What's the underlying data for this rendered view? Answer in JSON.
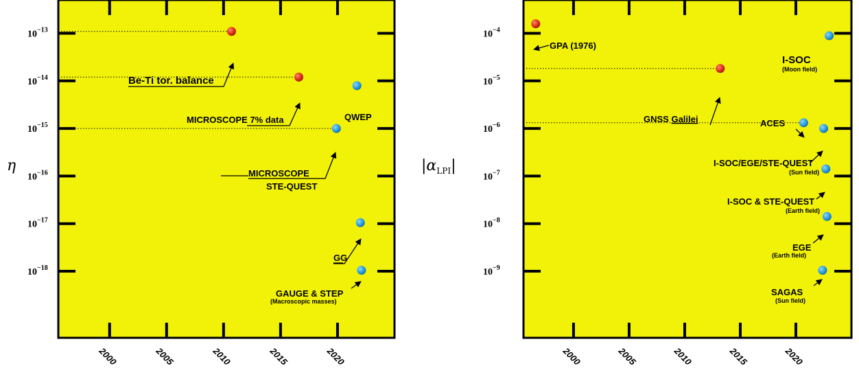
{
  "colors": {
    "background": "#f2f208",
    "frame": "#000000",
    "achieved_marker": "#e0301e",
    "projected_marker": "#2aa0e0"
  },
  "chart_data": [
    {
      "type": "scatter",
      "ylabel_main": "η",
      "xlim": [
        1995.5,
        2025
      ],
      "ylog": true,
      "ylim_exp": [
        -19.4,
        -12.3
      ],
      "xtick_labels": [
        "2000",
        "2005",
        "2010",
        "2015",
        "2020"
      ],
      "xticks": [
        2000,
        2005,
        2010,
        2015,
        2020
      ],
      "ytick_exps": [
        -13,
        -14,
        -15,
        -16,
        -17,
        -18
      ],
      "ytick_labels": [
        "10",
        "10",
        "10",
        "10",
        "10",
        "10"
      ],
      "ytick_sups": [
        "−13",
        "−14",
        "−15",
        "−16",
        "−17",
        "−18"
      ],
      "points": [
        {
          "year": 2010.7,
          "exp": -12.96,
          "status": "achieved"
        },
        {
          "year": 2016.6,
          "exp": -13.92,
          "status": "achieved"
        },
        {
          "year": 2021.7,
          "exp": -14.1,
          "status": "projected"
        },
        {
          "year": 2019.9,
          "exp": -15.0,
          "status": "projected"
        },
        {
          "year": 2022.0,
          "exp": -16.98,
          "status": "projected"
        },
        {
          "year": 2022.1,
          "exp": -17.98,
          "status": "projected"
        }
      ],
      "labels": {
        "betti": "Be-Ti tor. balance",
        "microscope7": "MICROSCOPE 7% data",
        "qwep": "QWEP",
        "microscope": "MICROSCOPE",
        "stequest": "STE-QUEST",
        "gg": "GG",
        "gauge": "GAUGE & STEP",
        "gauge_sub": "(Macroscopic masses)"
      }
    },
    {
      "type": "scatter",
      "ylabel_main": "|α",
      "ylabel_sub": "LPI",
      "ylabel_end": "|",
      "xlim": [
        1995.5,
        2025
      ],
      "ylog": true,
      "ylim_exp": [
        -10.4,
        -3.3
      ],
      "xtick_labels": [
        "2000",
        "2005",
        "2010",
        "2015",
        "2020"
      ],
      "xticks": [
        2000,
        2005,
        2010,
        2015,
        2020
      ],
      "ytick_exps": [
        -4,
        -5,
        -6,
        -7,
        -8,
        -9
      ],
      "ytick_labels": [
        "10",
        "10",
        "10",
        "10",
        "10",
        "10"
      ],
      "ytick_sups": [
        "−4",
        "−5",
        "−6",
        "−7",
        "−8",
        "−9"
      ],
      "points": [
        {
          "year": 1996.6,
          "exp": -3.8,
          "status": "achieved"
        },
        {
          "year": 2013.2,
          "exp": -4.74,
          "status": "achieved"
        },
        {
          "year": 2023.0,
          "exp": -4.05,
          "status": "projected"
        },
        {
          "year": 2020.7,
          "exp": -5.88,
          "status": "projected"
        },
        {
          "year": 2022.5,
          "exp": -6.0,
          "status": "projected"
        },
        {
          "year": 2022.7,
          "exp": -6.85,
          "status": "projected"
        },
        {
          "year": 2022.8,
          "exp": -7.85,
          "status": "projected"
        },
        {
          "year": 2022.4,
          "exp": -8.98,
          "status": "projected"
        }
      ],
      "labels": {
        "gpa": "GPA (1976)",
        "isoc": "I-SOC",
        "isoc_sub": "(Moon field)",
        "gnss": "GNSS ",
        "galilei": "Galilei",
        "aces": "ACES",
        "isoc_ege": "I-SOC/EGE/STE-QUEST",
        "sun_field1": "(Sun field)",
        "isoc_ste": "I-SOC & STE-QUEST",
        "earth_field1": "(Earth field)",
        "ege": "EGE",
        "earth_field2": "(Earth field)",
        "sagas": "SAGAS",
        "sun_field2": "(Sun field)"
      }
    }
  ]
}
